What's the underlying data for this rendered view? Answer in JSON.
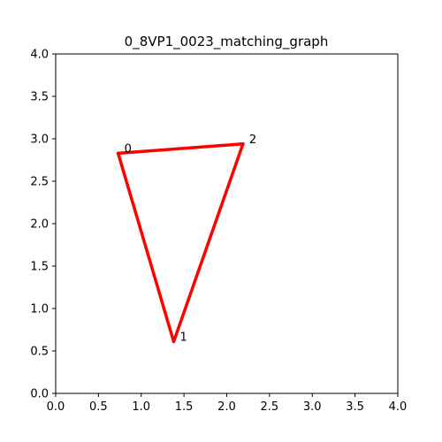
{
  "chart_data": {
    "type": "line",
    "title": "0_8VP1_0023_matching_graph",
    "xlabel": "",
    "ylabel": "",
    "xlim": [
      0.0,
      4.0
    ],
    "ylim": [
      0.0,
      4.0
    ],
    "grid": false,
    "x_ticks": [
      "0.0",
      "0.5",
      "1.0",
      "1.5",
      "2.0",
      "2.5",
      "3.0",
      "3.5",
      "4.0"
    ],
    "y_ticks": [
      "0.0",
      "0.5",
      "1.0",
      "1.5",
      "2.0",
      "2.5",
      "3.0",
      "3.5",
      "4.0"
    ],
    "edge_color": "#ff0000",
    "nodes": [
      {
        "label": "0",
        "x": 0.73,
        "y": 2.83
      },
      {
        "label": "1",
        "x": 1.38,
        "y": 0.61
      },
      {
        "label": "2",
        "x": 2.19,
        "y": 2.94
      }
    ],
    "edges": [
      {
        "from": 0,
        "to": 2
      },
      {
        "from": 0,
        "to": 1
      },
      {
        "from": 1,
        "to": 2
      }
    ]
  }
}
